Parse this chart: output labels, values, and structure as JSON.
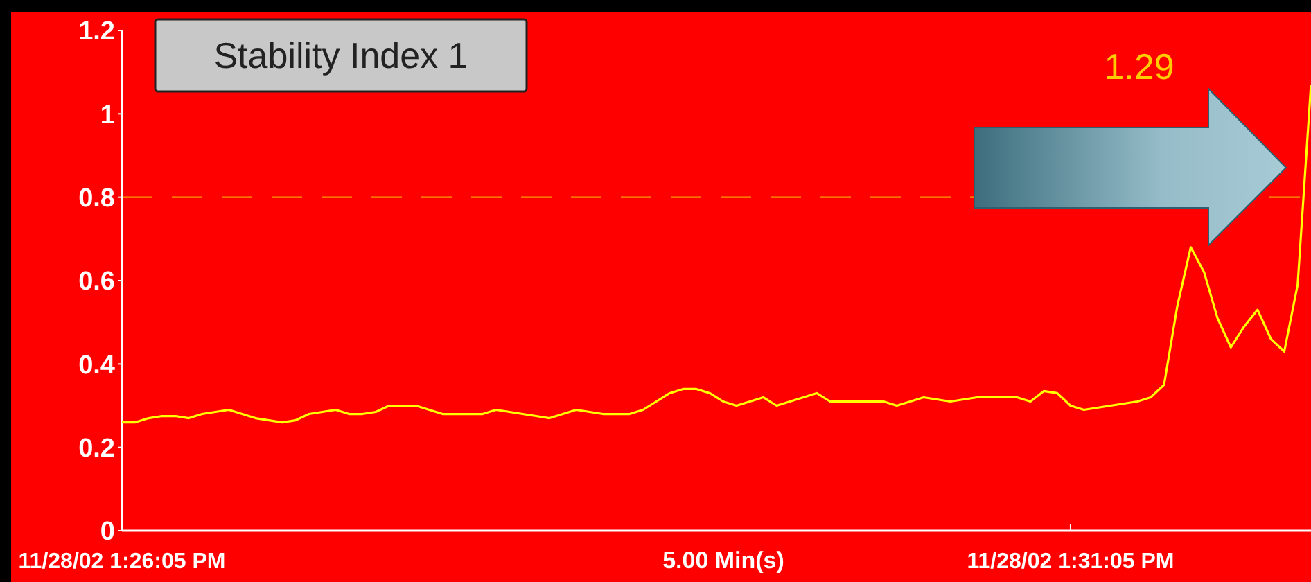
{
  "chart_data": {
    "type": "line",
    "title": "Stability Index 1",
    "xlabel": "5.00 Min(s)",
    "annotations": [
      "1.29"
    ],
    "categories": [
      "11/28/02 1:26:05 PM",
      null,
      null,
      null,
      null,
      null,
      null,
      null,
      null,
      null,
      null,
      null,
      null,
      null,
      null,
      null,
      null,
      null,
      null,
      null,
      null,
      null,
      null,
      null,
      null,
      null,
      null,
      null,
      null,
      null,
      null,
      null,
      null,
      null,
      null,
      null,
      null,
      null,
      null,
      null,
      null,
      null,
      null,
      null,
      null,
      null,
      null,
      null,
      null,
      null,
      null,
      null,
      null,
      null,
      null,
      null,
      null,
      null,
      null,
      null,
      null,
      null,
      null,
      null,
      null,
      null,
      null,
      null,
      null,
      null,
      null,
      "11/28/02 1:31:05 PM",
      null,
      null,
      null,
      null,
      null,
      null,
      null,
      null,
      null,
      null,
      null,
      null,
      null,
      null,
      null,
      null,
      null,
      null
    ],
    "ylim": [
      0,
      1.2
    ],
    "yticks": [
      0,
      0.2,
      0.4,
      0.6,
      0.8,
      1,
      1.2
    ],
    "grid": false,
    "marker": "none",
    "line_style": "solid",
    "ref_lines": [
      {
        "axis": "y",
        "value": 0.8,
        "color": "#ff9900",
        "line_style": "dashed"
      }
    ],
    "series": [
      {
        "color": "#ffff00",
        "values": [
          0.26,
          0.26,
          0.27,
          0.275,
          0.275,
          0.27,
          0.28,
          0.285,
          0.29,
          0.28,
          0.27,
          0.265,
          0.26,
          0.265,
          0.28,
          0.285,
          0.29,
          0.28,
          0.28,
          0.285,
          0.3,
          0.3,
          0.3,
          0.29,
          0.28,
          0.28,
          0.28,
          0.28,
          0.29,
          0.285,
          0.28,
          0.275,
          0.27,
          0.28,
          0.29,
          0.285,
          0.28,
          0.28,
          0.28,
          0.29,
          0.31,
          0.33,
          0.34,
          0.34,
          0.33,
          0.31,
          0.3,
          0.31,
          0.32,
          0.3,
          0.31,
          0.32,
          0.33,
          0.31,
          0.31,
          0.31,
          0.31,
          0.31,
          0.3,
          0.31,
          0.32,
          0.315,
          0.31,
          0.315,
          0.32,
          0.32,
          0.32,
          0.32,
          0.31,
          0.335,
          0.33,
          0.3,
          0.29,
          0.295,
          0.3,
          0.305,
          0.31,
          0.32,
          0.35,
          0.54,
          0.68,
          0.62,
          0.51,
          0.44,
          0.49,
          0.53,
          0.46,
          0.43,
          0.59,
          1.07
        ]
      }
    ]
  }
}
